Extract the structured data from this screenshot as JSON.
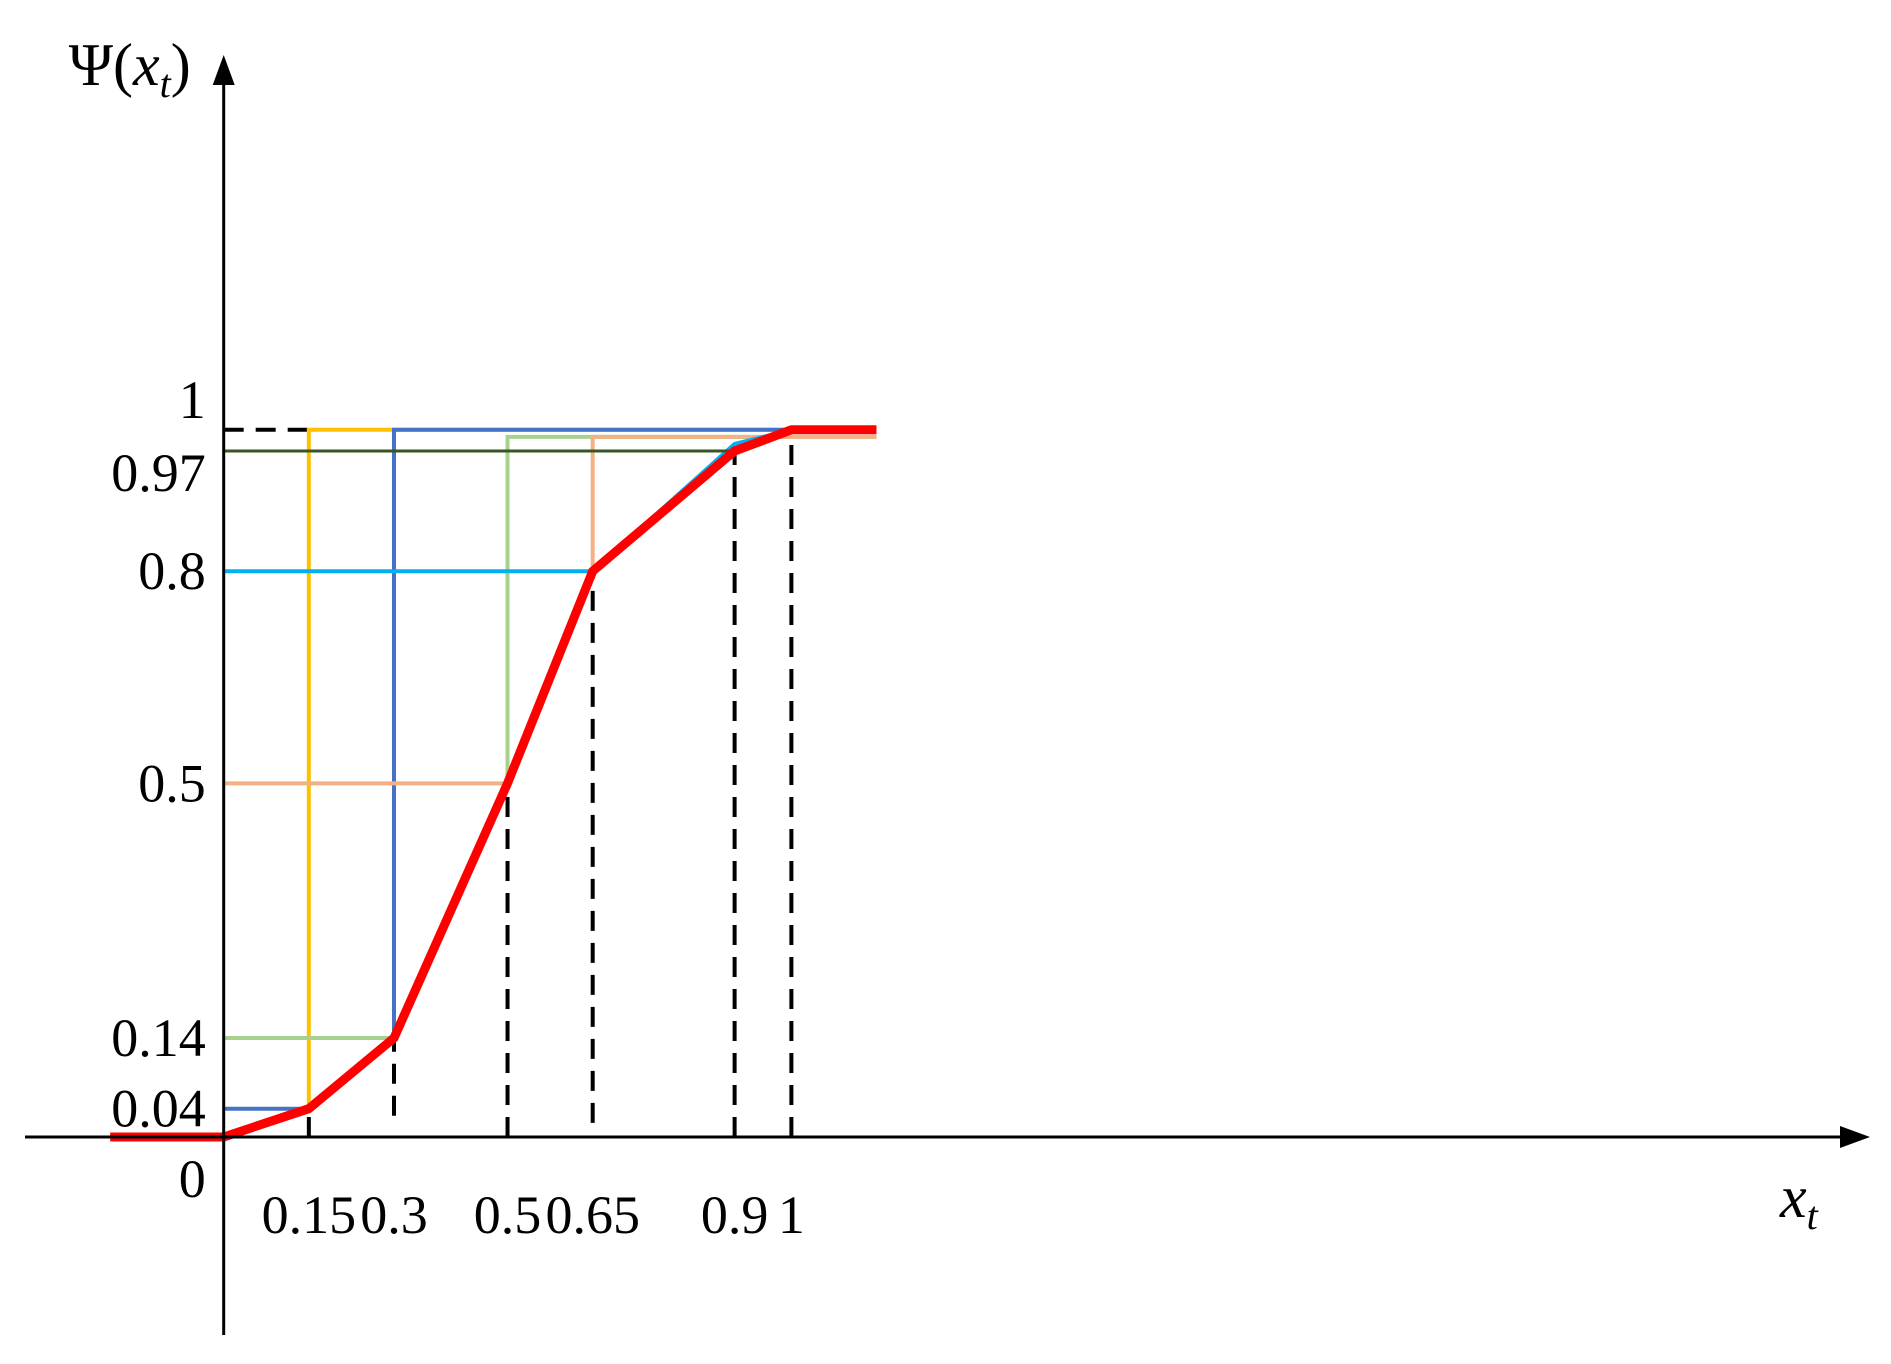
{
  "chart_data": {
    "type": "line",
    "title": "",
    "xlabel": {
      "prefix": "x",
      "sub": "t"
    },
    "ylabel": {
      "prefix": "Ψ(",
      "var": "x",
      "sub": "t",
      "suffix": ")"
    },
    "xlim": [
      -0.35,
      2.9
    ],
    "ylim": [
      -0.28,
      1.53
    ],
    "grid": false,
    "x_ticks": [
      {
        "value": 0.15,
        "label": "0.15"
      },
      {
        "value": 0.3,
        "label": "0.3"
      },
      {
        "value": 0.5,
        "label": "0.5"
      },
      {
        "value": 0.65,
        "label": "0.65"
      },
      {
        "value": 0.9,
        "label": "0.9"
      },
      {
        "value": 1,
        "label": "1"
      }
    ],
    "y_ticks": [
      {
        "value": 0,
        "label": "0"
      },
      {
        "value": 0.04,
        "label": "0.04"
      },
      {
        "value": 0.14,
        "label": "0.14"
      },
      {
        "value": 0.5,
        "label": "0.5"
      },
      {
        "value": 0.8,
        "label": "0.8"
      },
      {
        "value": 0.97,
        "label": "0.97"
      },
      {
        "value": 1,
        "label": "1"
      }
    ],
    "series": [
      {
        "color": "#FFC000",
        "width": 4,
        "x": [
          -0.2,
          0,
          0.15,
          0.15,
          1.15
        ],
        "y": [
          0,
          0,
          0.04,
          1,
          1
        ]
      },
      {
        "color": "#4472C4",
        "width": 4,
        "x": [
          0,
          0.15,
          0.3,
          0.3,
          1.15
        ],
        "y": [
          0.04,
          0.04,
          0.14,
          1,
          1
        ]
      },
      {
        "color": "#A9D18E",
        "width": 4,
        "x": [
          0,
          0.3,
          0.5,
          0.5,
          1.15
        ],
        "y": [
          0.14,
          0.14,
          0.5,
          0.99,
          0.99
        ]
      },
      {
        "color": "#F4B183",
        "width": 4,
        "x": [
          0,
          0.5,
          0.65,
          0.65,
          1.15
        ],
        "y": [
          0.5,
          0.5,
          0.8,
          0.99,
          0.99
        ]
      },
      {
        "color": "#00B0F0",
        "width": 4,
        "x": [
          0,
          0.65,
          0.9,
          1,
          1.15
        ],
        "y": [
          0.8,
          0.8,
          0.98,
          1,
          1
        ]
      },
      {
        "color": "#375623",
        "width": 3,
        "x": [
          0,
          0.9,
          1
        ],
        "y": [
          0.97,
          0.97,
          1
        ]
      },
      {
        "color": "#FF0000",
        "width": 9,
        "x": [
          -0.2,
          0,
          0.15,
          0.3,
          0.5,
          0.65,
          0.9,
          1,
          1.15
        ],
        "y": [
          0,
          0,
          0.04,
          0.14,
          0.5,
          0.8,
          0.97,
          1,
          1
        ]
      }
    ],
    "guides": {
      "vertical": [
        {
          "x": 0.15,
          "y_from": 0,
          "y_to": 0.04
        },
        {
          "x": 0.3,
          "y_from": 0.03,
          "y_to": 0.14
        },
        {
          "x": 0.5,
          "y_from": 0,
          "y_to": 0.5
        },
        {
          "x": 0.65,
          "y_from": 0.02,
          "y_to": 0.8
        },
        {
          "x": 0.9,
          "y_from": 0,
          "y_to": 0.97
        },
        {
          "x": 1,
          "y_from": 0,
          "y_to": 1
        }
      ],
      "horizontal": [
        {
          "y": 1,
          "x_from": 0,
          "x_to": 0.15
        }
      ]
    }
  }
}
